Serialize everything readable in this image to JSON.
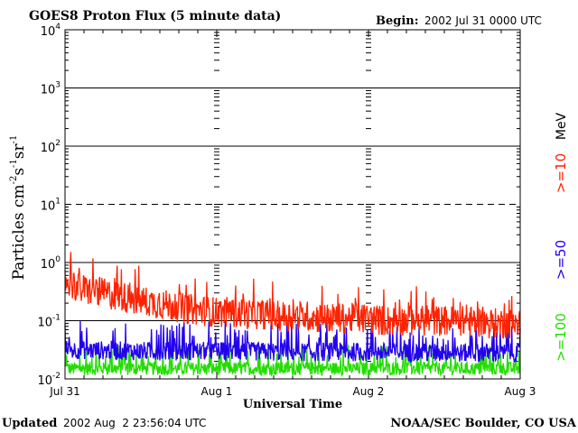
{
  "chart_data": {
    "type": "line",
    "title": "GOES8 Proton Flux (5 minute data)",
    "begin_label": "Begin:",
    "begin_value": "2002 Jul 31 0000 UTC",
    "xlabel": "Universal Time",
    "ylabel": {
      "base": "Particles cm",
      "sup1": "-2",
      "mid1": "s",
      "sup2": "-1",
      "mid2": "sr",
      "sup3": "-1"
    },
    "x_ticks": [
      "Jul 31",
      "Aug 1",
      "Aug 2",
      "Aug 3"
    ],
    "x_range_days": [
      0,
      3
    ],
    "y_scale": "log",
    "y_range": [
      0.01,
      10000
    ],
    "y_ticks": [
      {
        "base": "10",
        "exp": "4"
      },
      {
        "base": "10",
        "exp": "3"
      },
      {
        "base": "10",
        "exp": "2"
      },
      {
        "base": "10",
        "exp": "1"
      },
      {
        "base": "10",
        "exp": "0"
      },
      {
        "base": "10",
        "exp": "-1"
      },
      {
        "base": "10",
        "exp": "-2"
      }
    ],
    "legend_unit": "MeV",
    "series": [
      {
        "name": ">=10",
        "color": "#ff2200",
        "x": [
          0,
          0.1,
          0.2,
          0.3,
          0.4,
          0.5,
          0.6,
          0.7,
          0.8,
          0.9,
          1.0,
          1.1,
          1.2,
          1.3,
          1.4,
          1.5,
          1.6,
          1.7,
          1.8,
          1.9,
          2.0,
          2.1,
          2.2,
          2.3,
          2.4,
          2.5,
          2.6,
          2.7,
          2.8,
          2.9,
          3.0
        ],
        "y": [
          0.5,
          0.35,
          0.32,
          0.28,
          0.25,
          0.22,
          0.2,
          0.18,
          0.16,
          0.15,
          0.14,
          0.14,
          0.13,
          0.13,
          0.12,
          0.12,
          0.12,
          0.11,
          0.11,
          0.11,
          0.11,
          0.1,
          0.1,
          0.1,
          0.1,
          0.1,
          0.1,
          0.095,
          0.09,
          0.09,
          0.09
        ]
      },
      {
        "name": ">=50",
        "color": "#2200ee",
        "x": [
          0,
          0.5,
          1.0,
          1.5,
          2.0,
          2.5,
          3.0
        ],
        "y": [
          0.032,
          0.03,
          0.03,
          0.029,
          0.029,
          0.028,
          0.028
        ]
      },
      {
        "name": ">=100",
        "color": "#22dd00",
        "x": [
          0,
          0.5,
          1.0,
          1.5,
          2.0,
          2.5,
          3.0
        ],
        "y": [
          0.015,
          0.015,
          0.015,
          0.015,
          0.015,
          0.015,
          0.015
        ]
      }
    ]
  },
  "footer": {
    "updated_label": "Updated",
    "updated_value": "2002 Aug  2 23:56:04 UTC",
    "source": "NOAA/SEC Boulder, CO USA"
  }
}
